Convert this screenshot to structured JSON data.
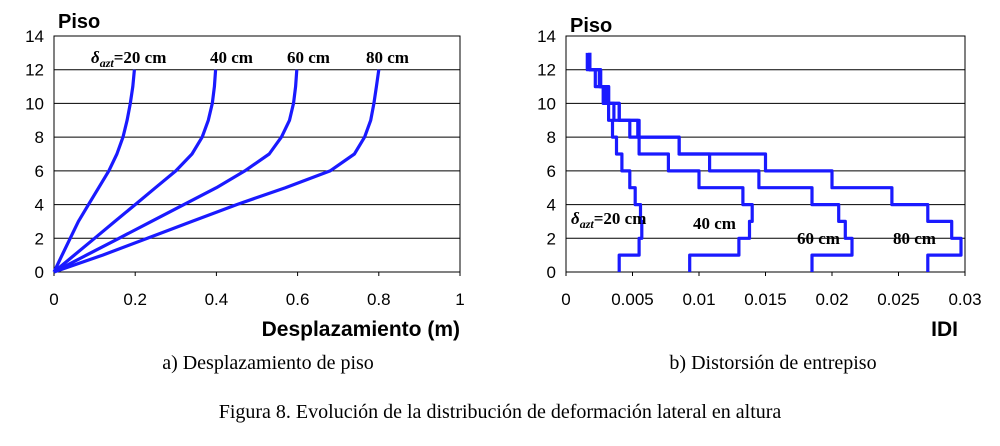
{
  "caption": "Figura 8. Evolución de la distribución de deformación lateral en altura",
  "chart_data": [
    {
      "type": "line",
      "panel_label": "a) Desplazamiento de piso",
      "ylabel": "Piso",
      "xlabel": "Desplazamiento (m)",
      "xlim": [
        0,
        1
      ],
      "ylim": [
        0,
        14
      ],
      "xticks": [
        "0",
        "0.2",
        "0.4",
        "0.6",
        "0.8",
        "1"
      ],
      "yticks": [
        "0",
        "2",
        "4",
        "6",
        "8",
        "10",
        "12",
        "14"
      ],
      "grid": "horizontal",
      "series": [
        {
          "name": "δazt=20 cm",
          "label_prefix": "δ",
          "label_sub": "azt",
          "label_rest": "=20 cm",
          "color": "#1a1aff",
          "points": [
            [
              0,
              0
            ],
            [
              0.02,
              1
            ],
            [
              0.04,
              2
            ],
            [
              0.06,
              3
            ],
            [
              0.085,
              4
            ],
            [
              0.11,
              5
            ],
            [
              0.135,
              6
            ],
            [
              0.155,
              7
            ],
            [
              0.17,
              8
            ],
            [
              0.18,
              9
            ],
            [
              0.188,
              10
            ],
            [
              0.194,
              11
            ],
            [
              0.198,
              12
            ]
          ]
        },
        {
          "name": "40 cm",
          "color": "#1a1aff",
          "points": [
            [
              0,
              0
            ],
            [
              0.05,
              1
            ],
            [
              0.1,
              2
            ],
            [
              0.15,
              3
            ],
            [
              0.2,
              4
            ],
            [
              0.25,
              5
            ],
            [
              0.3,
              6
            ],
            [
              0.34,
              7
            ],
            [
              0.365,
              8
            ],
            [
              0.38,
              9
            ],
            [
              0.39,
              10
            ],
            [
              0.395,
              11
            ],
            [
              0.398,
              12
            ]
          ]
        },
        {
          "name": "60 cm",
          "color": "#1a1aff",
          "points": [
            [
              0,
              0
            ],
            [
              0.08,
              1
            ],
            [
              0.16,
              2
            ],
            [
              0.24,
              3
            ],
            [
              0.32,
              4
            ],
            [
              0.4,
              5
            ],
            [
              0.47,
              6
            ],
            [
              0.53,
              7
            ],
            [
              0.56,
              8
            ],
            [
              0.58,
              9
            ],
            [
              0.59,
              10
            ],
            [
              0.595,
              11
            ],
            [
              0.598,
              12
            ]
          ]
        },
        {
          "name": "80 cm",
          "color": "#1a1aff",
          "points": [
            [
              0,
              0
            ],
            [
              0.12,
              1
            ],
            [
              0.23,
              2
            ],
            [
              0.34,
              3
            ],
            [
              0.45,
              4
            ],
            [
              0.57,
              5
            ],
            [
              0.68,
              6
            ],
            [
              0.74,
              7
            ],
            [
              0.765,
              8
            ],
            [
              0.78,
              9
            ],
            [
              0.788,
              10
            ],
            [
              0.794,
              11
            ],
            [
              0.8,
              12
            ]
          ]
        }
      ]
    },
    {
      "type": "line",
      "panel_label": "b) Distorsión de entrepiso",
      "ylabel": "Piso",
      "xlabel": "IDI",
      "xlim": [
        0,
        0.03
      ],
      "ylim": [
        0,
        14
      ],
      "xticks": [
        "0",
        "0.005",
        "0.01",
        "0.015",
        "0.02",
        "0.025",
        "0.03"
      ],
      "yticks": [
        "0",
        "2",
        "4",
        "6",
        "8",
        "10",
        "12",
        "14"
      ],
      "grid": "horizontal",
      "series": [
        {
          "name": "δazt=20 cm",
          "label_prefix": "δ",
          "label_sub": "azt",
          "label_rest": "=20 cm",
          "color": "#1a1aff",
          "values": [
            0.004,
            0.0055,
            0.0057,
            0.0056,
            0.0052,
            0.0048,
            0.0042,
            0.0038,
            0.0035,
            0.0032,
            0.0028,
            0.0022,
            0.0016
          ]
        },
        {
          "name": "40 cm",
          "color": "#1a1aff",
          "values": [
            0.0093,
            0.013,
            0.0138,
            0.014,
            0.0133,
            0.01,
            0.0077,
            0.0055,
            0.0048,
            0.0036,
            0.003,
            0.0025,
            0.0018
          ]
        },
        {
          "name": "60 cm",
          "color": "#1a1aff",
          "values": [
            0.0185,
            0.0215,
            0.021,
            0.0205,
            0.0185,
            0.0145,
            0.0108,
            0.0085,
            0.0054,
            0.004,
            0.0032,
            0.0026,
            0.0018
          ]
        },
        {
          "name": "80 cm",
          "color": "#1a1aff",
          "values": [
            0.0272,
            0.0297,
            0.029,
            0.0272,
            0.0245,
            0.02,
            0.015,
            0.0085,
            0.0055,
            0.004,
            0.0032,
            0.0026,
            0.0018
          ]
        }
      ]
    }
  ]
}
